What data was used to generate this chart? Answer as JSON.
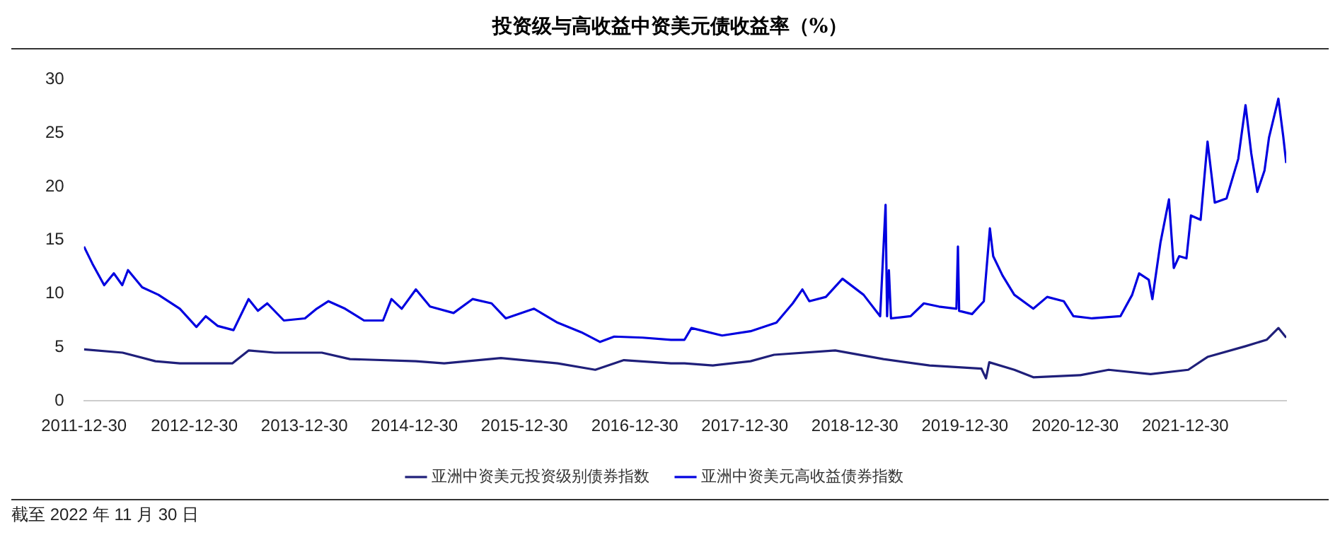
{
  "chart_data": {
    "type": "line",
    "title": "投资级与高收益中资美元债收益率（%）",
    "xlim": [
      "2011-12-30",
      "2022-11-30"
    ],
    "xticks": [
      "2011-12-30",
      "2012-12-30",
      "2013-12-30",
      "2014-12-30",
      "2015-12-30",
      "2016-12-30",
      "2017-12-30",
      "2018-12-30",
      "2019-12-30",
      "2020-12-30",
      "2021-12-30"
    ],
    "ylim": [
      0,
      30
    ],
    "yticks": [
      0,
      5,
      10,
      15,
      20,
      25,
      30
    ],
    "grid": false,
    "legend": "bottom",
    "marker": "none",
    "line_style": "solid",
    "annotations": [
      "截至 2022 年 11 月 30 日"
    ],
    "series": [
      {
        "name": "亚洲中资美元投资级别债券指数",
        "color": "#1f1f7a",
        "x": [
          "2011-12-30",
          "2012-05-06",
          "2012-08-23",
          "2012-11-12",
          "2013-05-05",
          "2013-06-28",
          "2013-09-22",
          "2014-02-26",
          "2014-05-30",
          "2015-01-04",
          "2015-04-08",
          "2015-10-13",
          "2016-04-18",
          "2016-08-21",
          "2016-11-24",
          "2017-04-29",
          "2017-06-13",
          "2017-09-15",
          "2018-01-18",
          "2018-04-06",
          "2018-10-26",
          "2019-04-04",
          "2019-09-04",
          "2020-02-23",
          "2020-03-09",
          "2020-03-20",
          "2020-06-11",
          "2020-08-13",
          "2021-01-16",
          "2021-04-20",
          "2021-09-06",
          "2022-01-09",
          "2022-03-14",
          "2022-07-18",
          "2022-09-26",
          "2022-11-04",
          "2022-11-30"
        ],
        "values": [
          4.8,
          4.5,
          3.7,
          3.5,
          3.5,
          4.7,
          4.5,
          4.5,
          3.9,
          3.7,
          3.5,
          4.0,
          3.5,
          2.9,
          3.8,
          3.5,
          3.5,
          3.3,
          3.7,
          4.3,
          4.7,
          3.9,
          3.3,
          3.0,
          2.1,
          3.6,
          2.9,
          2.2,
          2.4,
          2.9,
          2.5,
          2.9,
          4.1,
          5.1,
          5.7,
          6.8,
          5.9
        ]
      },
      {
        "name": "亚洲中资美元高收益债券指数",
        "color": "#0000e0",
        "x": [
          "2011-12-30",
          "2012-01-27",
          "2012-03-06",
          "2012-04-07",
          "2012-05-05",
          "2012-05-24",
          "2012-07-10",
          "2012-09-02",
          "2012-11-12",
          "2013-01-06",
          "2013-02-06",
          "2013-03-17",
          "2013-05-09",
          "2013-06-28",
          "2013-07-29",
          "2013-08-29",
          "2013-10-23",
          "2014-01-01",
          "2014-02-09",
          "2014-03-20",
          "2014-05-14",
          "2014-07-16",
          "2014-09-17",
          "2014-10-15",
          "2014-11-18",
          "2015-01-04",
          "2015-02-20",
          "2015-05-09",
          "2015-07-11",
          "2015-09-12",
          "2015-10-29",
          "2016-01-31",
          "2016-04-18",
          "2016-07-06",
          "2016-09-06",
          "2016-10-23",
          "2017-01-25",
          "2017-04-29",
          "2017-06-13",
          "2017-07-06",
          "2017-10-16",
          "2018-01-18",
          "2018-04-14",
          "2018-06-07",
          "2018-07-09",
          "2018-08-01",
          "2018-09-25",
          "2018-11-19",
          "2019-01-28",
          "2019-03-24",
          "2019-04-11",
          "2019-04-16",
          "2019-04-22",
          "2019-04-29",
          "2019-07-03",
          "2019-08-16",
          "2019-10-05",
          "2019-12-02",
          "2019-12-07",
          "2019-12-11",
          "2020-01-23",
          "2020-03-02",
          "2020-03-22",
          "2020-04-02",
          "2020-05-03",
          "2020-06-11",
          "2020-08-13",
          "2020-09-28",
          "2020-11-22",
          "2020-12-24",
          "2021-02-24",
          "2021-05-29",
          "2021-07-07",
          "2021-07-30",
          "2021-08-31",
          "2021-09-12",
          "2021-10-09",
          "2021-11-06",
          "2021-11-22",
          "2021-12-10",
          "2022-01-03",
          "2022-01-18",
          "2022-02-19",
          "2022-03-14",
          "2022-04-07",
          "2022-05-16",
          "2022-06-24",
          "2022-07-18",
          "2022-08-06",
          "2022-08-26",
          "2022-09-19",
          "2022-10-04",
          "2022-11-04",
          "2022-11-20",
          "2022-11-30"
        ],
        "values": [
          14.4,
          12.8,
          10.8,
          11.9,
          10.8,
          12.2,
          10.6,
          9.9,
          8.6,
          6.9,
          7.9,
          7.0,
          6.6,
          9.5,
          8.4,
          9.1,
          7.5,
          7.7,
          8.6,
          9.3,
          8.6,
          7.5,
          7.5,
          9.5,
          8.6,
          10.4,
          8.8,
          8.2,
          9.5,
          9.1,
          7.7,
          8.6,
          7.3,
          6.4,
          5.5,
          6.0,
          5.9,
          5.7,
          5.7,
          6.8,
          6.1,
          6.5,
          7.3,
          9.1,
          10.4,
          9.3,
          9.7,
          11.4,
          9.9,
          7.9,
          18.3,
          7.9,
          12.2,
          7.7,
          7.9,
          9.1,
          8.8,
          8.6,
          14.4,
          8.4,
          8.1,
          9.3,
          16.1,
          13.5,
          11.7,
          9.9,
          8.6,
          9.7,
          9.3,
          7.9,
          7.7,
          7.9,
          9.9,
          11.9,
          11.3,
          9.5,
          14.8,
          18.8,
          12.4,
          13.5,
          13.3,
          17.3,
          16.9,
          24.2,
          18.5,
          18.9,
          22.6,
          27.6,
          23.1,
          19.5,
          21.5,
          24.6,
          28.2,
          24.7,
          22.2
        ]
      }
    ]
  }
}
